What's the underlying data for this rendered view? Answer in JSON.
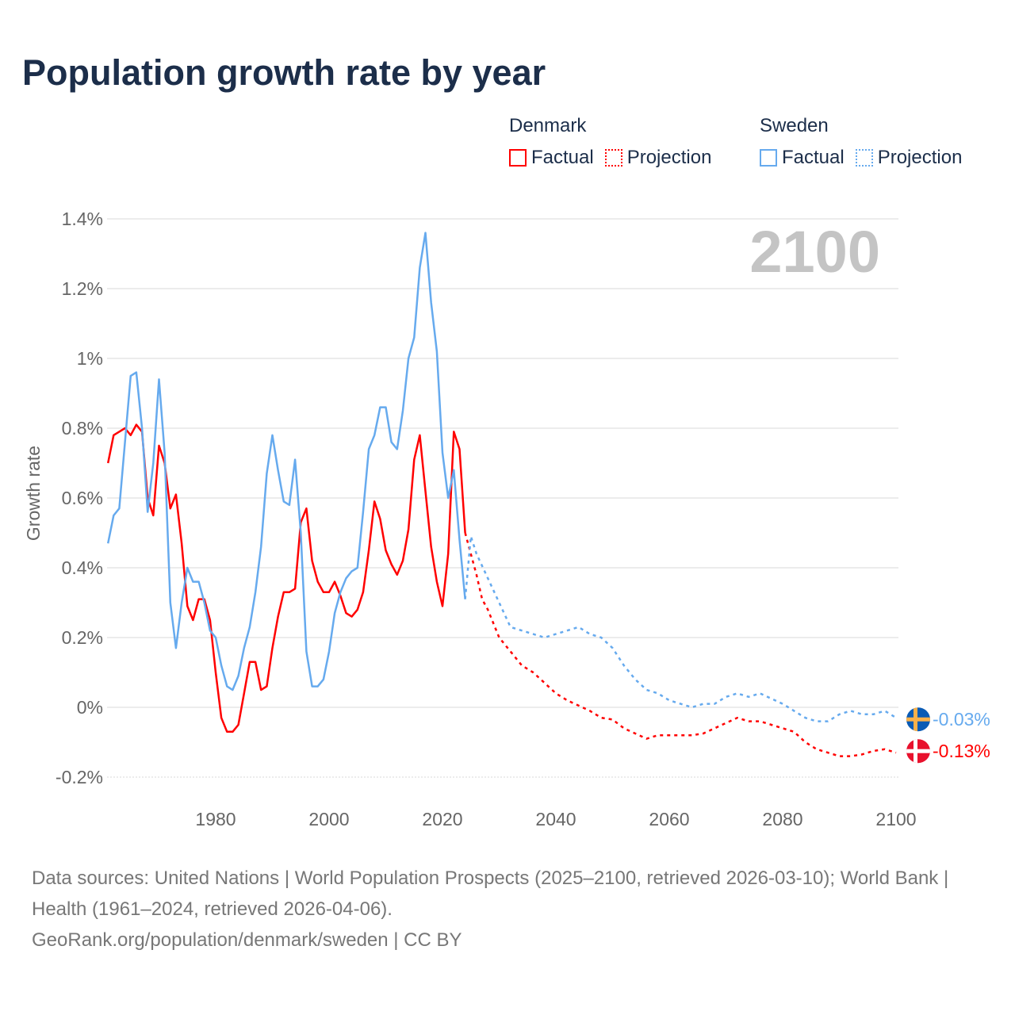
{
  "title": "Population growth rate by year",
  "legend": {
    "groups": [
      {
        "name": "Denmark",
        "factual": "Factual",
        "projection": "Projection",
        "color": "#ff0000"
      },
      {
        "name": "Sweden",
        "factual": "Factual",
        "projection": "Projection",
        "color": "#66aaee"
      }
    ]
  },
  "year_watermark": "2100",
  "sources": {
    "line1": "Data sources: United Nations | World Population Prospects (2025–2100, retrieved 2026-03-10); World Bank | Health (1961–2024, retrieved 2026-04-06).",
    "line2": "GeoRank.org/population/denmark/sweden | CC BY"
  },
  "chart_data": {
    "type": "line",
    "title": "Population growth rate by year",
    "ylabel": "Growth rate",
    "xlabel": "",
    "xlim": [
      1961,
      2100
    ],
    "ylim": [
      -0.2,
      1.4
    ],
    "xticks": [
      "1980",
      "2000",
      "2020",
      "2040",
      "2060",
      "2080",
      "2100"
    ],
    "yticks": [
      {
        "v": -0.2,
        "label": "-0.2%"
      },
      {
        "v": 0,
        "label": "0%"
      },
      {
        "v": 0.2,
        "label": "0.2%"
      },
      {
        "v": 0.4,
        "label": "0.4%"
      },
      {
        "v": 0.6,
        "label": "0.6%"
      },
      {
        "v": 0.8,
        "label": "0.8%"
      },
      {
        "v": 1.0,
        "label": "1%"
      },
      {
        "v": 1.2,
        "label": "1.2%"
      },
      {
        "v": 1.4,
        "label": "1.4%"
      }
    ],
    "grid": true,
    "legend_position": "top-right",
    "series": [
      {
        "name": "Denmark Factual",
        "color": "#ff0000",
        "dashed": false,
        "x_start": 1961,
        "values": [
          0.7,
          0.78,
          0.79,
          0.8,
          0.78,
          0.81,
          0.79,
          0.6,
          0.55,
          0.75,
          0.7,
          0.57,
          0.61,
          0.47,
          0.29,
          0.25,
          0.31,
          0.31,
          0.25,
          0.1,
          -0.03,
          -0.07,
          -0.07,
          -0.05,
          0.04,
          0.13,
          0.13,
          0.05,
          0.06,
          0.17,
          0.26,
          0.33,
          0.33,
          0.34,
          0.53,
          0.57,
          0.42,
          0.36,
          0.33,
          0.33,
          0.36,
          0.32,
          0.27,
          0.26,
          0.28,
          0.33,
          0.45,
          0.59,
          0.54,
          0.45,
          0.41,
          0.38,
          0.42,
          0.51,
          0.71,
          0.78,
          0.62,
          0.46,
          0.36,
          0.29,
          0.44,
          0.79,
          0.74,
          0.5
        ]
      },
      {
        "name": "Sweden Factual",
        "color": "#66aaee",
        "dashed": false,
        "x_start": 1961,
        "values": [
          0.47,
          0.55,
          0.57,
          0.76,
          0.95,
          0.96,
          0.8,
          0.56,
          0.7,
          0.94,
          0.73,
          0.3,
          0.17,
          0.3,
          0.4,
          0.36,
          0.36,
          0.3,
          0.22,
          0.2,
          0.12,
          0.06,
          0.05,
          0.09,
          0.17,
          0.23,
          0.33,
          0.46,
          0.67,
          0.78,
          0.68,
          0.59,
          0.58,
          0.71,
          0.5,
          0.16,
          0.06,
          0.06,
          0.08,
          0.16,
          0.27,
          0.33,
          0.37,
          0.39,
          0.4,
          0.56,
          0.74,
          0.78,
          0.86,
          0.86,
          0.76,
          0.74,
          0.85,
          1.0,
          1.06,
          1.26,
          1.36,
          1.16,
          1.02,
          0.73,
          0.6,
          0.68,
          0.48,
          0.31
        ]
      },
      {
        "name": "Denmark Projection",
        "color": "#ff0000",
        "dashed": true,
        "x": [
          2024,
          2026,
          2027,
          2028,
          2030,
          2032,
          2034,
          2036,
          2038,
          2040,
          2042,
          2044,
          2046,
          2048,
          2050,
          2052,
          2054,
          2056,
          2058,
          2060,
          2062,
          2064,
          2066,
          2068,
          2070,
          2072,
          2074,
          2076,
          2078,
          2080,
          2082,
          2084,
          2086,
          2088,
          2090,
          2092,
          2094,
          2096,
          2098,
          2100
        ],
        "values": [
          0.5,
          0.38,
          0.31,
          0.28,
          0.2,
          0.16,
          0.12,
          0.1,
          0.07,
          0.04,
          0.02,
          0.005,
          -0.01,
          -0.03,
          -0.035,
          -0.06,
          -0.075,
          -0.09,
          -0.08,
          -0.08,
          -0.08,
          -0.08,
          -0.075,
          -0.06,
          -0.045,
          -0.03,
          -0.04,
          -0.04,
          -0.05,
          -0.06,
          -0.07,
          -0.1,
          -0.12,
          -0.13,
          -0.14,
          -0.14,
          -0.135,
          -0.125,
          -0.12,
          -0.13
        ]
      },
      {
        "name": "Sweden Projection",
        "color": "#66aaee",
        "dashed": true,
        "x": [
          2024,
          2025,
          2026,
          2028,
          2030,
          2032,
          2034,
          2036,
          2038,
          2040,
          2042,
          2044,
          2046,
          2048,
          2050,
          2052,
          2054,
          2056,
          2058,
          2060,
          2062,
          2064,
          2066,
          2068,
          2070,
          2072,
          2074,
          2076,
          2078,
          2080,
          2082,
          2084,
          2086,
          2088,
          2090,
          2092,
          2094,
          2096,
          2098,
          2100
        ],
        "values": [
          0.31,
          0.49,
          0.44,
          0.37,
          0.3,
          0.23,
          0.22,
          0.21,
          0.2,
          0.21,
          0.22,
          0.23,
          0.21,
          0.2,
          0.17,
          0.12,
          0.08,
          0.05,
          0.04,
          0.02,
          0.01,
          0.0,
          0.01,
          0.01,
          0.03,
          0.04,
          0.03,
          0.04,
          0.025,
          0.01,
          -0.01,
          -0.03,
          -0.04,
          -0.04,
          -0.02,
          -0.01,
          -0.02,
          -0.02,
          -0.01,
          -0.03
        ]
      }
    ],
    "end_labels": [
      {
        "country": "Sweden",
        "label": "-0.03%",
        "value": -0.03,
        "color": "#66aaee"
      },
      {
        "country": "Denmark",
        "label": "-0.13%",
        "value": -0.13,
        "color": "#ff0000"
      }
    ]
  }
}
